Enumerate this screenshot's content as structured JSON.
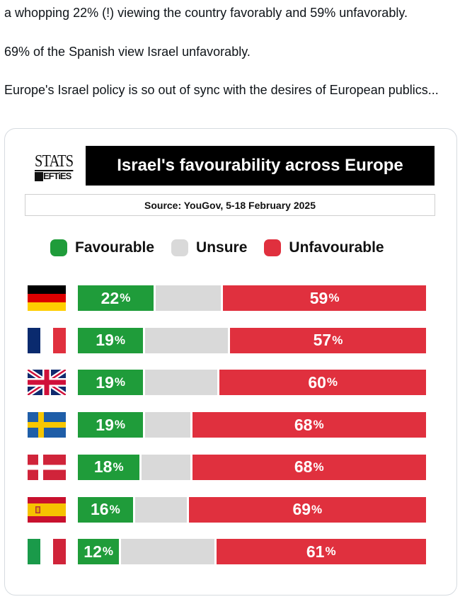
{
  "tweet": {
    "line1": "a whopping 22% (!) viewing the country favorably and 59% unfavorably.",
    "line2": "69% of the Spanish view Israel unfavorably.",
    "line3": "Europe's Israel policy is so out of sync with the desires of European publics..."
  },
  "logo": {
    "top": "STATS",
    "bottom": "EFTiES"
  },
  "chart_data": {
    "type": "bar",
    "title": "Israel's favourability across Europe",
    "subtitle": "Source: YouGov, 5-18 February 2025",
    "stacked": true,
    "legend_position": "top",
    "categories": [
      "Germany",
      "France",
      "United Kingdom",
      "Sweden",
      "Denmark",
      "Spain",
      "Italy"
    ],
    "series": [
      {
        "name": "Favourable",
        "color": "#1f9c3a",
        "values": [
          22,
          19,
          19,
          19,
          18,
          16,
          12
        ]
      },
      {
        "name": "Unsure",
        "color": "#d9d9d9",
        "values": [
          19,
          24,
          21,
          13,
          14,
          15,
          27
        ]
      },
      {
        "name": "Unfavourable",
        "color": "#e0303e",
        "values": [
          59,
          57,
          60,
          68,
          68,
          69,
          61
        ]
      }
    ],
    "labels": {
      "favourable": [
        "22",
        "19",
        "19",
        "19",
        "18",
        "16",
        "12"
      ],
      "unfavourable": [
        "59",
        "57",
        "60",
        "68",
        "68",
        "69",
        "61"
      ],
      "suffix": "%"
    },
    "flag_icons": [
      "germany-flag-icon",
      "france-flag-icon",
      "uk-flag-icon",
      "sweden-flag-icon",
      "denmark-flag-icon",
      "spain-flag-icon",
      "italy-flag-icon"
    ]
  }
}
